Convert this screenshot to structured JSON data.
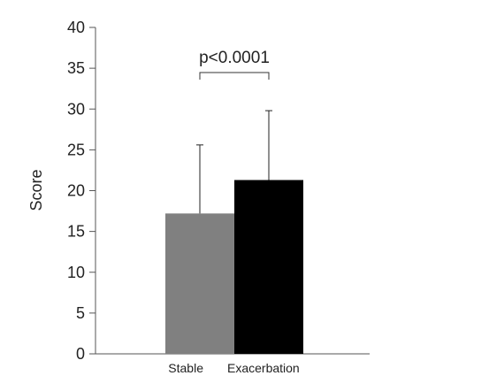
{
  "chart_data": {
    "type": "bar",
    "categories": [
      "Stable",
      "Exacerbation"
    ],
    "values": [
      17.2,
      21.3
    ],
    "error_upper": [
      25.6,
      29.8
    ],
    "colors": [
      "#808080",
      "#000000"
    ],
    "ylabel": "Score",
    "ylim": [
      0,
      40
    ],
    "yticks": [
      0,
      5,
      10,
      15,
      20,
      25,
      30,
      35,
      40
    ],
    "grid": false,
    "annotation": {
      "text": "p<0.0001"
    }
  }
}
